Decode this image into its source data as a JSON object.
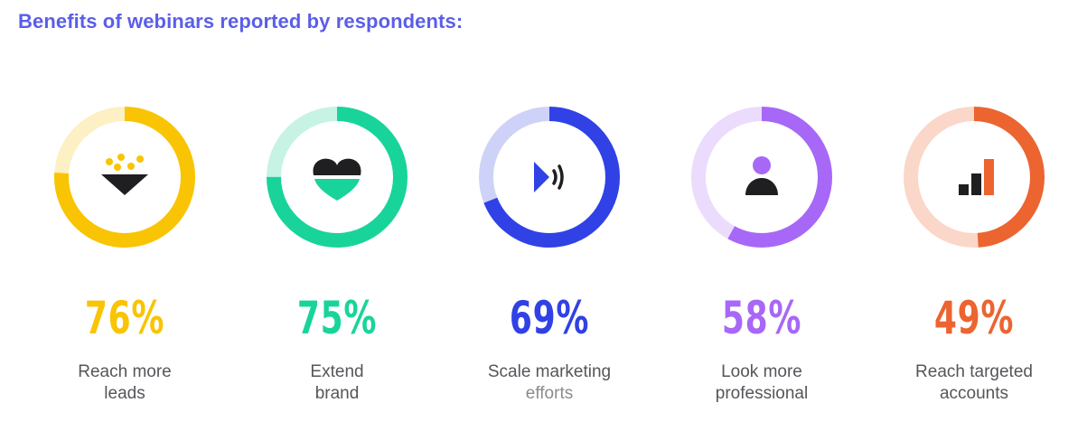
{
  "title": "Benefits of webinars reported by respondents:",
  "colors": {
    "title": "#5a5ee8",
    "label_text": "#55565a"
  },
  "chart_data": {
    "type": "pie",
    "title": "Benefits of webinars reported by respondents:",
    "unit": "%",
    "items": [
      {
        "value": 76,
        "display": "76%",
        "label_lines": [
          "Reach more",
          "leads"
        ],
        "icon": "funnel-leads-icon",
        "color": "#f9c404",
        "track_color": "#fdf0c4"
      },
      {
        "value": 75,
        "display": "75%",
        "label_lines": [
          "Extend",
          "brand"
        ],
        "icon": "heart-icon",
        "color": "#19d49a",
        "track_color": "#c6f3e4"
      },
      {
        "value": 69,
        "display": "69%",
        "label_lines": [
          "Scale marketing",
          "efforts"
        ],
        "icon": "megaphone-icon",
        "color": "#3041e6",
        "track_color": "#cfd2f8"
      },
      {
        "value": 58,
        "display": "58%",
        "label_lines": [
          "Look more",
          "professional"
        ],
        "icon": "person-icon",
        "color": "#a768f7",
        "track_color": "#ebdcfd"
      },
      {
        "value": 49,
        "display": "49%",
        "label_lines": [
          "Reach targeted",
          "accounts"
        ],
        "icon": "bar-chart-icon",
        "color": "#ec6430",
        "track_color": "#fad7c8"
      }
    ]
  }
}
